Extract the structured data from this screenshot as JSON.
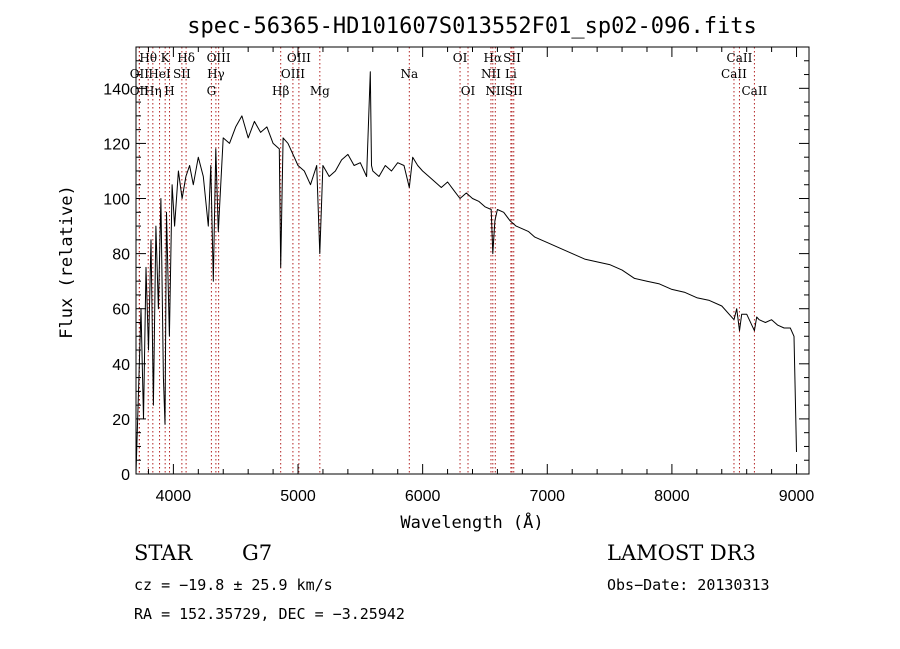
{
  "chart_data": {
    "type": "line",
    "title": "spec-56365-HD101607S013552F01_sp02-096.fits",
    "xlabel": "Wavelength (Å)",
    "ylabel": "Flux (relative)",
    "xlim": [
      3700,
      9100
    ],
    "ylim": [
      0,
      155
    ],
    "x_ticks": [
      4000,
      5000,
      6000,
      7000,
      8000,
      9000
    ],
    "y_ticks": [
      0,
      20,
      40,
      60,
      80,
      100,
      120,
      140
    ],
    "series": [
      {
        "name": "flux",
        "x": [
          3700,
          3720,
          3740,
          3760,
          3780,
          3800,
          3820,
          3840,
          3860,
          3880,
          3900,
          3920,
          3933,
          3945,
          3968,
          3990,
          4010,
          4040,
          4070,
          4100,
          4130,
          4160,
          4200,
          4240,
          4280,
          4300,
          4320,
          4340,
          4360,
          4400,
          4450,
          4500,
          4550,
          4600,
          4650,
          4700,
          4750,
          4800,
          4850,
          4861,
          4880,
          4920,
          4960,
          5000,
          5050,
          5100,
          5150,
          5175,
          5200,
          5250,
          5300,
          5350,
          5400,
          5450,
          5500,
          5550,
          5580,
          5590,
          5600,
          5650,
          5700,
          5750,
          5800,
          5850,
          5893,
          5920,
          5960,
          6000,
          6050,
          6100,
          6150,
          6200,
          6250,
          6300,
          6350,
          6400,
          6450,
          6500,
          6550,
          6563,
          6580,
          6600,
          6650,
          6700,
          6750,
          6800,
          6850,
          6900,
          6950,
          7000,
          7100,
          7200,
          7300,
          7400,
          7500,
          7600,
          7700,
          7800,
          7900,
          8000,
          8100,
          8200,
          8300,
          8400,
          8498,
          8520,
          8542,
          8560,
          8600,
          8662,
          8680,
          8700,
          8750,
          8800,
          8850,
          8900,
          8950,
          8980,
          9000
        ],
        "values": [
          0,
          30,
          60,
          20,
          75,
          45,
          85,
          25,
          90,
          60,
          100,
          35,
          18,
          95,
          50,
          105,
          90,
          110,
          100,
          108,
          112,
          105,
          115,
          108,
          90,
          112,
          70,
          118,
          88,
          122,
          120,
          126,
          130,
          122,
          128,
          124,
          126,
          120,
          118,
          75,
          122,
          120,
          116,
          112,
          110,
          105,
          112,
          80,
          112,
          108,
          110,
          114,
          116,
          112,
          113,
          108,
          146,
          112,
          110,
          108,
          112,
          110,
          113,
          112,
          104,
          115,
          112,
          110,
          108,
          106,
          104,
          106,
          103,
          100,
          102,
          100,
          99,
          97,
          96,
          80,
          92,
          96,
          95,
          92,
          90,
          89,
          88,
          86,
          85,
          84,
          82,
          80,
          78,
          77,
          76,
          74,
          71,
          70,
          69,
          67,
          66,
          64,
          63,
          61,
          56,
          60,
          52,
          58,
          58,
          52,
          57,
          56,
          55,
          56,
          54,
          53,
          53,
          50,
          8
        ]
      }
    ],
    "line_markers": [
      {
        "label": "Hθ",
        "x": 3798,
        "row": 1
      },
      {
        "label": "OII",
        "x": 3727,
        "row": 2
      },
      {
        "label": "OII",
        "x": 3727,
        "row": 3
      },
      {
        "label": "K",
        "x": 3934,
        "row": 1
      },
      {
        "label": "HeI",
        "x": 3889,
        "row": 2
      },
      {
        "label": "Hη",
        "x": 3835,
        "row": 3
      },
      {
        "label": "H",
        "x": 3969,
        "row": 3
      },
      {
        "label": "SII",
        "x": 4068,
        "row": 2
      },
      {
        "label": "Hδ",
        "x": 4102,
        "row": 1
      },
      {
        "label": "OIII",
        "x": 4363,
        "row": 1
      },
      {
        "label": "Hγ",
        "x": 4341,
        "row": 2
      },
      {
        "label": "G",
        "x": 4305,
        "row": 3
      },
      {
        "label": "Hβ",
        "x": 4861,
        "row": 3
      },
      {
        "label": "OIII",
        "x": 5007,
        "row": 1
      },
      {
        "label": "OIII",
        "x": 4959,
        "row": 2
      },
      {
        "label": "Mg",
        "x": 5175,
        "row": 3
      },
      {
        "label": "Na",
        "x": 5893,
        "row": 2
      },
      {
        "label": "OI",
        "x": 6300,
        "row": 1
      },
      {
        "label": "OI",
        "x": 6364,
        "row": 3
      },
      {
        "label": "Hα",
        "x": 6563,
        "row": 1
      },
      {
        "label": "NII",
        "x": 6548,
        "row": 2
      },
      {
        "label": "NII",
        "x": 6583,
        "row": 3
      },
      {
        "label": "SII",
        "x": 6717,
        "row": 1
      },
      {
        "label": "Li",
        "x": 6708,
        "row": 2
      },
      {
        "label": "SII",
        "x": 6731,
        "row": 3
      },
      {
        "label": "CaII",
        "x": 8542,
        "row": 1
      },
      {
        "label": "CaII",
        "x": 8498,
        "row": 2
      },
      {
        "label": "CaII",
        "x": 8662,
        "row": 3
      }
    ]
  },
  "info": {
    "object_class": "STAR",
    "subclass": "G7",
    "survey": "LAMOST DR3",
    "redshift": "cz = −19.8 ± 25.9 km/s",
    "obs_date": "Obs−Date: 20130313",
    "coords": "RA = 152.35729, DEC =  −3.25942"
  },
  "colors": {
    "spectrum": "#000000",
    "marker_line": "#b22222",
    "axes": "#000000",
    "background": "#ffffff"
  }
}
